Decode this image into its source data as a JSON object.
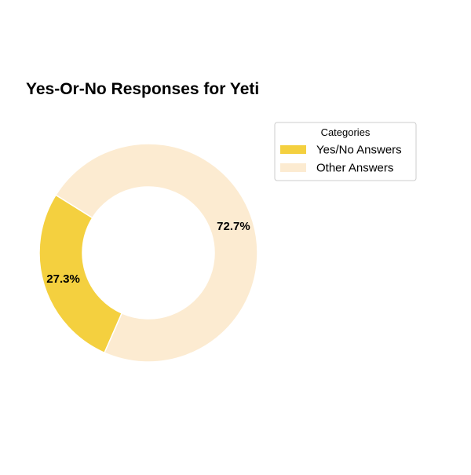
{
  "chart_data": {
    "type": "pie",
    "style": "donut",
    "title": "Yes-Or-No Responses for Yeti",
    "slices": [
      {
        "label": "Yes/No Answers",
        "value": 27.3,
        "display": "27.3%",
        "color": "#f4d03f"
      },
      {
        "label": "Other Answers",
        "value": 72.7,
        "display": "72.7%",
        "color": "#fcebd1"
      }
    ],
    "legend": {
      "title": "Categories",
      "placement": "right"
    }
  }
}
